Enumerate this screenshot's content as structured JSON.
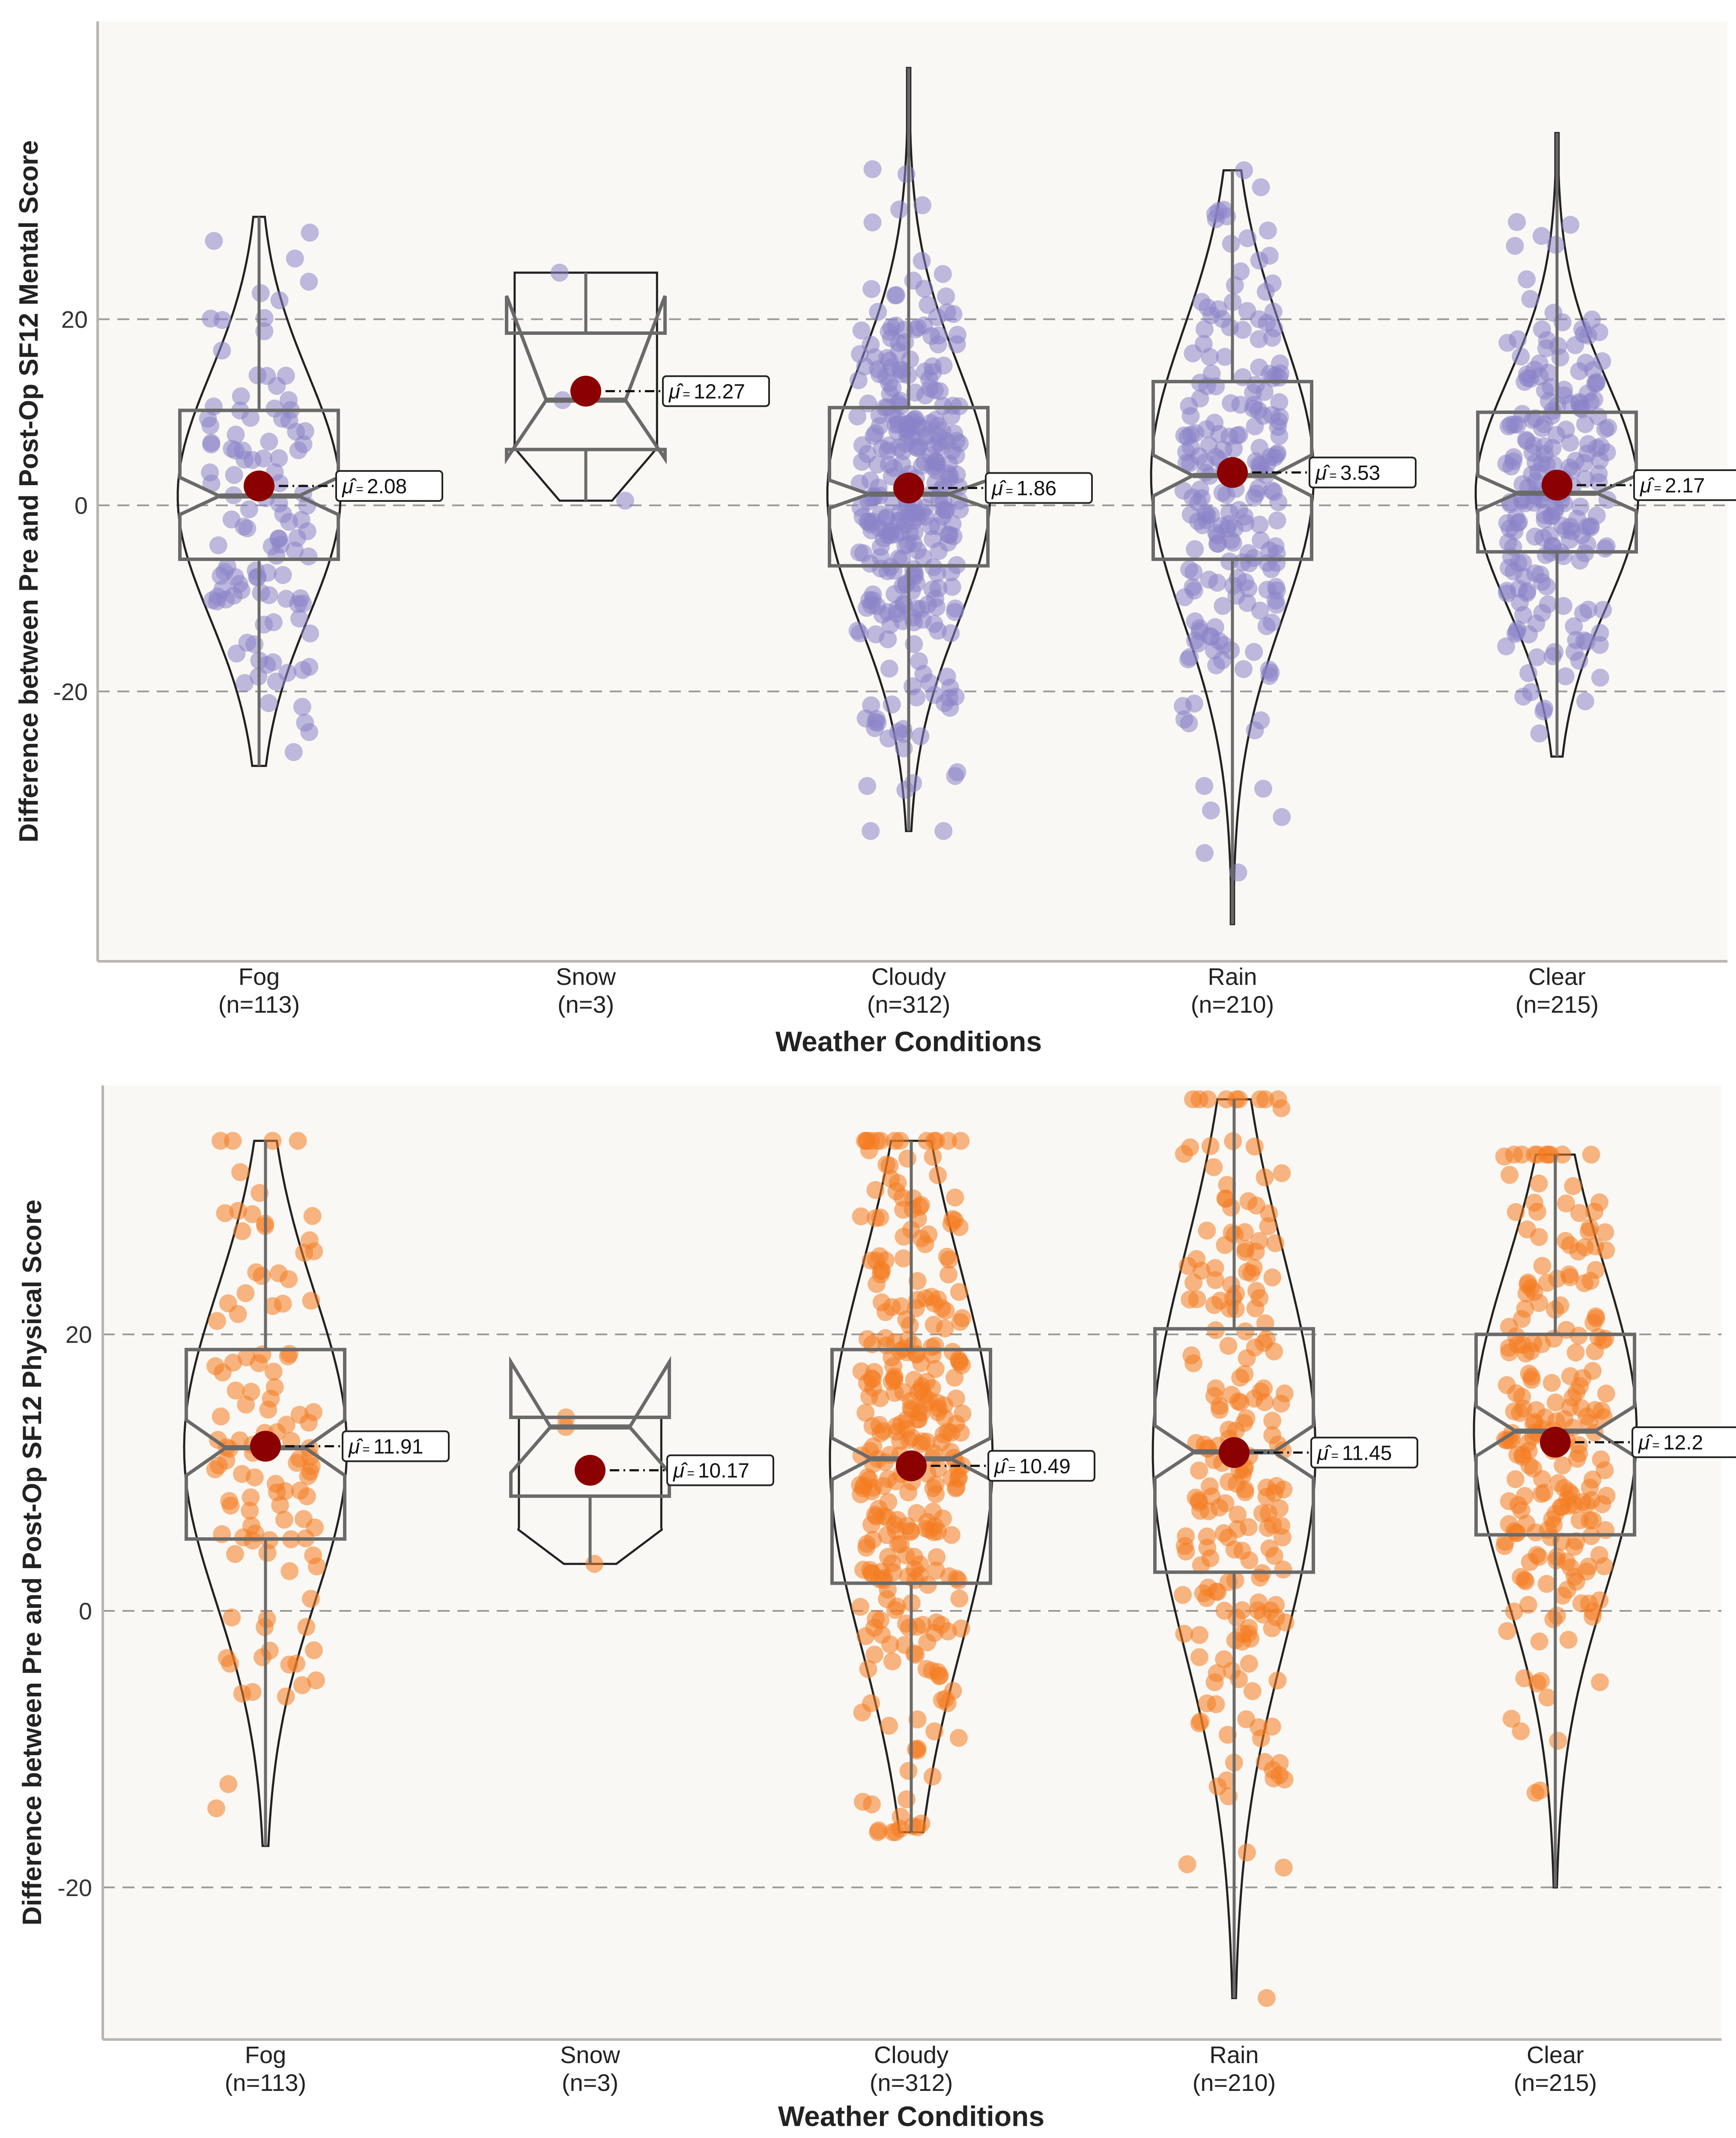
{
  "chart_data": [
    {
      "type": "violin-box",
      "ylabel": "Difference between Pre and Post-Op SF12 Mental Score",
      "xlabel": "Weather Conditions",
      "ylim": [
        -49,
        52
      ],
      "yticks": [
        -20,
        0,
        20
      ],
      "point_color": "#8b84c8",
      "categories": [
        {
          "name": "Fog",
          "n_label": "(n=113)",
          "mean_label": "2.08",
          "mean": 2.08,
          "q1": -5.8,
          "median": 1.0,
          "q3": 10.2,
          "notch_lo": -1.0,
          "notch_hi": 3.0,
          "min": -28,
          "max": 31,
          "points_seed": 11,
          "n": 113
        },
        {
          "name": "Snow",
          "n_label": "(n=3)",
          "mean_label": "12.27",
          "mean": 12.27,
          "q1": 6.0,
          "median": 11.3,
          "q3": 18.5,
          "notch_lo": 5.0,
          "notch_hi": 22.5,
          "min": 0.5,
          "max": 25,
          "points_seed": 22,
          "n": 3
        },
        {
          "name": "Cloudy",
          "n_label": "(n=312)",
          "mean_label": "1.86",
          "mean": 1.86,
          "q1": -6.5,
          "median": 1.2,
          "q3": 10.5,
          "notch_lo": -0.3,
          "notch_hi": 2.7,
          "min": -35,
          "max": 47,
          "points_seed": 33,
          "n": 312
        },
        {
          "name": "Rain",
          "n_label": "(n=210)",
          "mean_label": "3.53",
          "mean": 3.53,
          "q1": -5.8,
          "median": 3.2,
          "q3": 13.3,
          "notch_lo": 1.0,
          "notch_hi": 5.4,
          "min": -45,
          "max": 36,
          "points_seed": 44,
          "n": 210
        },
        {
          "name": "Clear",
          "n_label": "(n=215)",
          "mean_label": "2.17",
          "mean": 2.17,
          "q1": -5.0,
          "median": 1.3,
          "q3": 10.0,
          "notch_lo": -0.6,
          "notch_hi": 3.2,
          "min": -27,
          "max": 40,
          "points_seed": 55,
          "n": 215
        }
      ]
    },
    {
      "type": "violin-box",
      "ylabel": "Difference between Pre and Post-Op SF12 Physical Score",
      "xlabel": "Weather Conditions",
      "ylim": [
        -31,
        38
      ],
      "yticks": [
        -20,
        0,
        20
      ],
      "point_color": "#f47c20",
      "categories": [
        {
          "name": "Fog",
          "n_label": "(n=113)",
          "mean_label": "11.91",
          "mean": 11.91,
          "q1": 5.2,
          "median": 11.8,
          "q3": 18.9,
          "notch_lo": 9.8,
          "notch_hi": 13.8,
          "min": -17,
          "max": 34,
          "points_seed": 66,
          "n": 113
        },
        {
          "name": "Snow",
          "n_label": "(n=3)",
          "mean_label": "10.17",
          "mean": 10.17,
          "q1": 8.3,
          "median": 13.3,
          "q3": 14.0,
          "notch_lo": 10.0,
          "notch_hi": 18.0,
          "min": 3.4,
          "max": 14,
          "points_seed": 77,
          "n": 3
        },
        {
          "name": "Cloudy",
          "n_label": "(n=312)",
          "mean_label": "10.49",
          "mean": 10.49,
          "q1": 2.0,
          "median": 11.0,
          "q3": 18.9,
          "notch_lo": 9.5,
          "notch_hi": 12.5,
          "min": -16,
          "max": 34,
          "points_seed": 88,
          "n": 312
        },
        {
          "name": "Rain",
          "n_label": "(n=210)",
          "mean_label": "11.45",
          "mean": 11.45,
          "q1": 2.8,
          "median": 11.5,
          "q3": 20.4,
          "notch_lo": 9.6,
          "notch_hi": 13.4,
          "min": -28,
          "max": 37,
          "points_seed": 99,
          "n": 210
        },
        {
          "name": "Clear",
          "n_label": "(n=215)",
          "mean_label": "12.2",
          "mean": 12.2,
          "q1": 5.5,
          "median": 13.0,
          "q3": 20.0,
          "notch_lo": 11.2,
          "notch_hi": 14.8,
          "min": -20,
          "max": 33,
          "points_seed": 111,
          "n": 215
        }
      ]
    }
  ],
  "mean_symbol": "μ̂",
  "mean_eq": "="
}
